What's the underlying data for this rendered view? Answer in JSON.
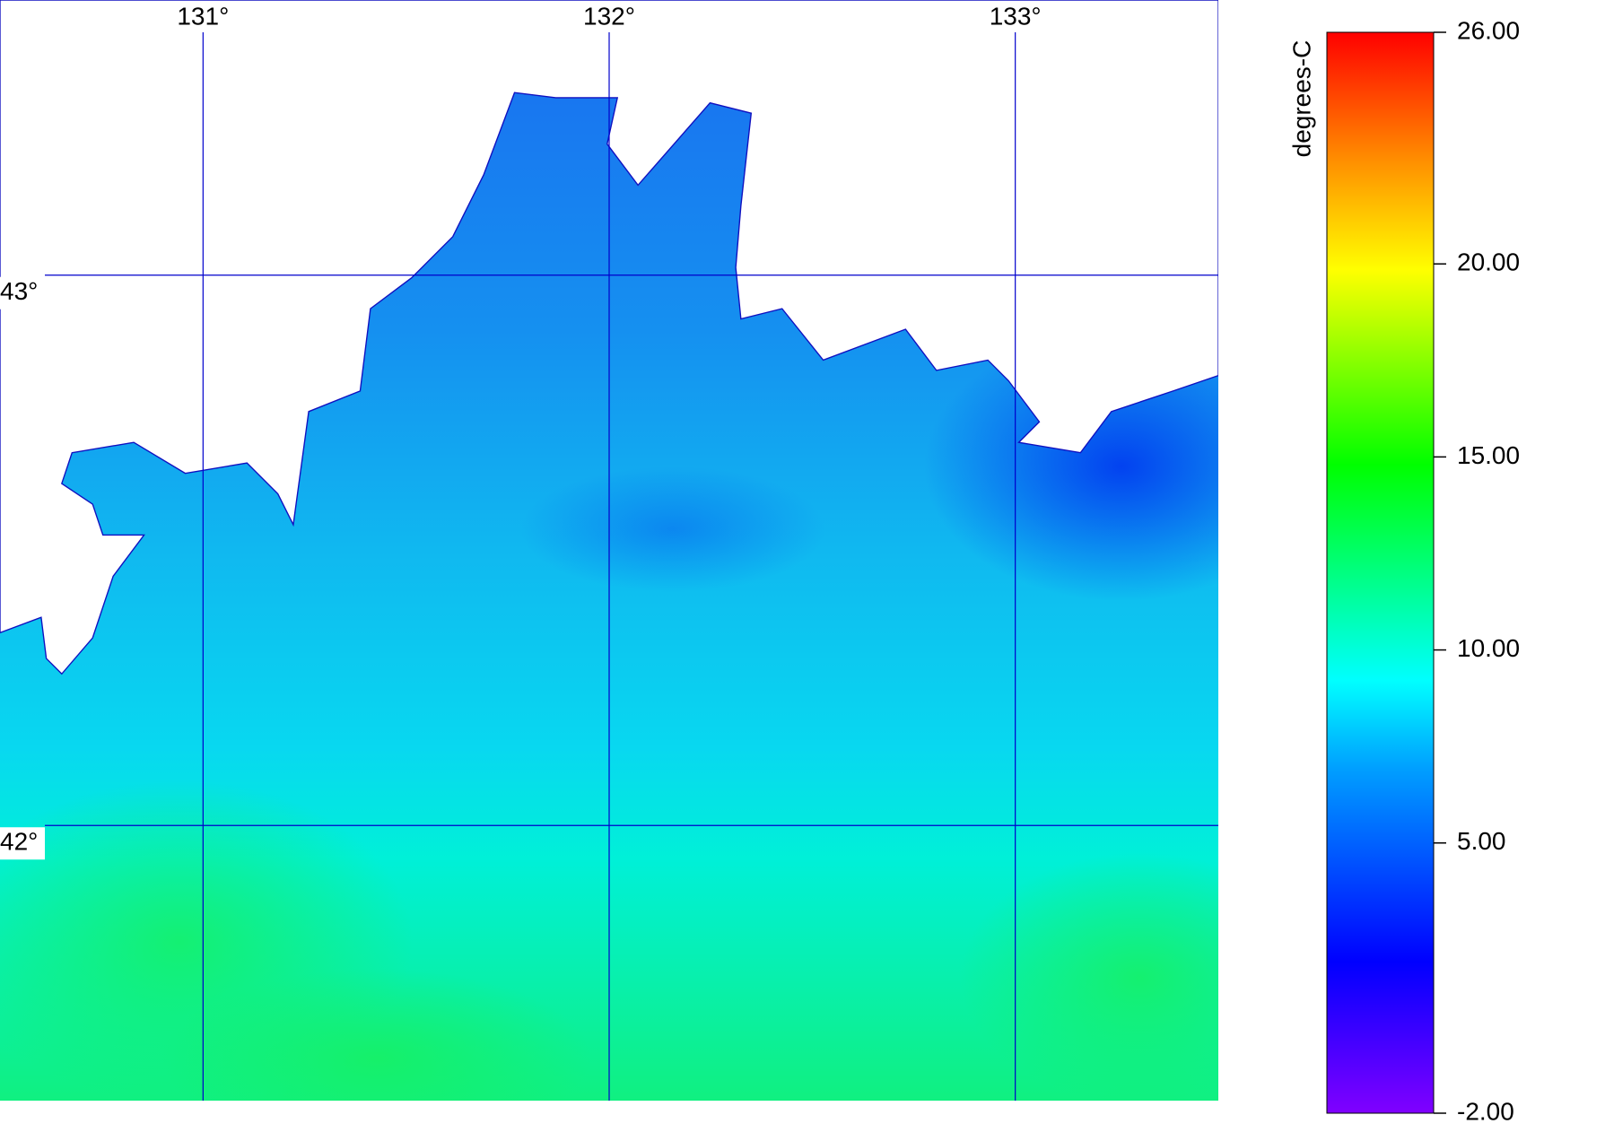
{
  "map": {
    "xlim": [
      130.5,
      133.5
    ],
    "ylim": [
      41.5,
      43.5
    ],
    "xticks": [
      {
        "value": 131,
        "label": "131°"
      },
      {
        "value": 132,
        "label": "132°"
      },
      {
        "value": 133,
        "label": "133°"
      }
    ],
    "yticks": [
      {
        "value": 43,
        "label": "43°"
      },
      {
        "value": 42,
        "label": "42°"
      }
    ],
    "grid_color": "#0000cc",
    "colorbar": {
      "title": "degrees-C",
      "lim": [
        -2,
        26
      ],
      "ticks": [
        {
          "value": 26,
          "label": "26.00"
        },
        {
          "value": 20,
          "label": "20.00"
        },
        {
          "value": 15,
          "label": "15.00"
        },
        {
          "value": 10,
          "label": "10.00"
        },
        {
          "value": 5,
          "label": "5.00"
        },
        {
          "value": -2,
          "label": "-2.00"
        }
      ]
    }
  }
}
